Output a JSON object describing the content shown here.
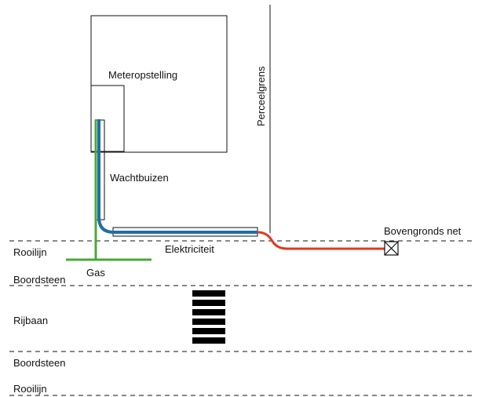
{
  "labels": {
    "meter_setup": "Meteropstelling",
    "property_boundary": "Perceelgrens",
    "conduits": "Wachtbuizen",
    "building_line_top": "Rooilijn",
    "electricity": "Elektriciteit",
    "gas": "Gas",
    "overhead_network": "Bovengronds net",
    "curb_top": "Boordsteen",
    "roadway": "Rijbaan",
    "curb_bottom": "Boordsteen",
    "building_line_bottom": "Rooilijn"
  },
  "colors": {
    "electricity_underground": "#1f6fa8",
    "electricity_overhead": "#e03a1e",
    "gas": "#4aa83a",
    "lines": "#111111",
    "crosswalk": "#000000"
  },
  "icons": {
    "connection_box": "box-x-icon"
  },
  "crosswalk_stripes": 6
}
